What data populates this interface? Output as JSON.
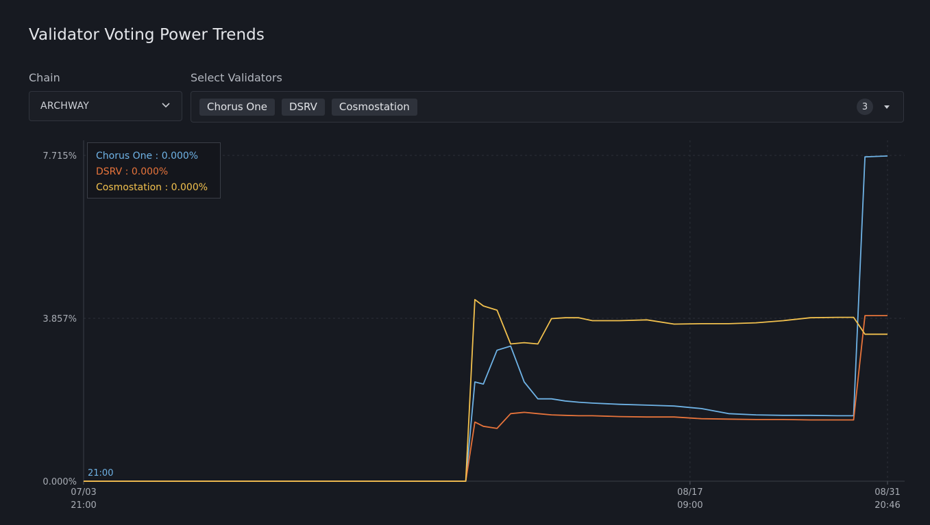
{
  "page": {
    "title": "Validator Voting Power Trends"
  },
  "chain": {
    "label": "Chain",
    "value": "ARCHWAY"
  },
  "validators": {
    "label": "Select Validators",
    "selected": [
      "Chorus One",
      "DSRV",
      "Cosmostation"
    ],
    "count": "3"
  },
  "tooltip": {
    "rows": [
      {
        "name": "Chorus One",
        "value": "0.000%",
        "color": "#6fb3e6"
      },
      {
        "name": "DSRV",
        "value": "0.000%",
        "color": "#e8743b"
      },
      {
        "name": "Cosmostation",
        "value": "0.000%",
        "color": "#f2c14e"
      }
    ],
    "time_label": "21:00"
  },
  "colors": {
    "background": "#171a21",
    "chorus_one": "#6fb3e6",
    "dsrv": "#e8743b",
    "cosmostation": "#f2c14e"
  },
  "chart_data": {
    "type": "line",
    "title": "Validator Voting Power Trends",
    "xlabel": "",
    "ylabel": "",
    "ylim": [
      0,
      7.715
    ],
    "grid": true,
    "y_ticks": [
      "0.000%",
      "3.857%",
      "7.715%"
    ],
    "x_ticks": [
      {
        "date": "07/03",
        "time": "21:00"
      },
      {
        "date": "08/17",
        "time": "09:00"
      },
      {
        "date": "08/31",
        "time": "20:46"
      }
    ],
    "x_tick_dates": [
      "2024-07-03 21:00",
      "2024-08-17 09:00",
      "2024-08-31 20:46"
    ],
    "x": [
      "2024-07-03 21:00",
      "2024-07-31 22:00",
      "2024-08-01 14:00",
      "2024-08-02 05:00",
      "2024-08-03 05:00",
      "2024-08-04 05:00",
      "2024-08-05 05:00",
      "2024-08-06 05:00",
      "2024-08-07 05:00",
      "2024-08-08 05:00",
      "2024-08-09 05:00",
      "2024-08-10 05:00",
      "2024-08-12 05:00",
      "2024-08-14 05:00",
      "2024-08-16 05:00",
      "2024-08-18 05:00",
      "2024-08-20 05:00",
      "2024-08-22 05:00",
      "2024-08-24 05:00",
      "2024-08-26 05:00",
      "2024-08-28 05:00",
      "2024-08-29 09:00",
      "2024-08-30 05:00",
      "2024-08-31 20:46"
    ],
    "series": [
      {
        "name": "Chorus One",
        "values": [
          0,
          0,
          2.35,
          2.3,
          3.1,
          3.2,
          2.35,
          1.95,
          1.95,
          1.9,
          1.87,
          1.85,
          1.82,
          1.8,
          1.78,
          1.72,
          1.6,
          1.57,
          1.56,
          1.56,
          1.55,
          1.55,
          7.68,
          7.7
        ]
      },
      {
        "name": "DSRV",
        "values": [
          0,
          0,
          1.4,
          1.3,
          1.25,
          1.6,
          1.63,
          1.6,
          1.57,
          1.56,
          1.55,
          1.55,
          1.53,
          1.52,
          1.52,
          1.48,
          1.47,
          1.46,
          1.46,
          1.45,
          1.45,
          1.45,
          3.92,
          3.92
        ]
      },
      {
        "name": "Cosmostation",
        "values": [
          0,
          0,
          4.3,
          4.15,
          4.05,
          3.25,
          3.28,
          3.25,
          3.85,
          3.87,
          3.87,
          3.8,
          3.8,
          3.82,
          3.72,
          3.73,
          3.73,
          3.75,
          3.8,
          3.87,
          3.88,
          3.88,
          3.48,
          3.48
        ]
      }
    ]
  }
}
